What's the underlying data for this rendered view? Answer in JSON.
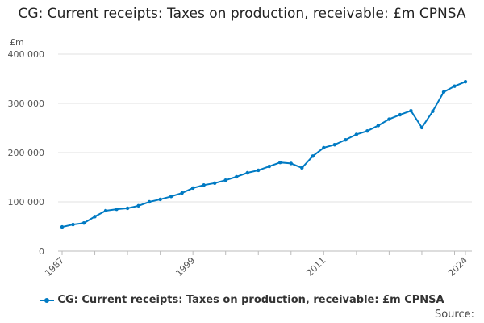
{
  "chart_data": {
    "type": "line",
    "title": "CG: Current receipts: Taxes on production, receivable: £m CPNSA",
    "ylabel": "£m",
    "xlabel": "",
    "ylim": [
      0,
      400000
    ],
    "yticks": [
      0,
      100000,
      200000,
      300000,
      400000
    ],
    "ytick_labels": [
      "0",
      "100 000",
      "200 000",
      "300 000",
      "400 000"
    ],
    "xtick_labels": [
      "1987",
      "1999",
      "2011",
      "2024"
    ],
    "grid": true,
    "legend_placement": "bottom",
    "color": "#007ac3",
    "series": [
      {
        "name": "CG: Current receipts: Taxes on production, receivable: £m CPNSA",
        "x": [
          1987,
          1988,
          1989,
          1990,
          1991,
          1992,
          1993,
          1994,
          1995,
          1996,
          1997,
          1998,
          1999,
          2000,
          2001,
          2002,
          2003,
          2004,
          2005,
          2006,
          2007,
          2008,
          2009,
          2010,
          2011,
          2012,
          2013,
          2014,
          2015,
          2016,
          2017,
          2018,
          2019,
          2020,
          2021,
          2022,
          2023,
          2024
        ],
        "values": [
          49000,
          54000,
          57000,
          70000,
          82000,
          85000,
          87000,
          92000,
          100000,
          105000,
          111000,
          118000,
          128000,
          134000,
          138000,
          144000,
          151000,
          159000,
          164000,
          172000,
          180000,
          178000,
          169000,
          193000,
          210000,
          216000,
          226000,
          237000,
          244000,
          255000,
          268000,
          277000,
          285000,
          251000,
          284000,
          323000,
          335000,
          344000
        ]
      }
    ]
  },
  "source_label": "Source:"
}
